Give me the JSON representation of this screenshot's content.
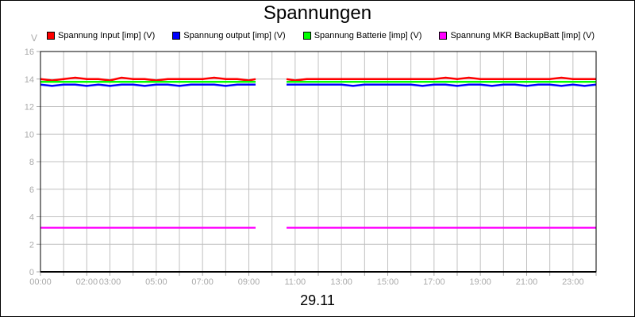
{
  "chart_data": {
    "type": "line",
    "title": "Spannungen",
    "xlabel": "29.11",
    "ylabel": "V",
    "ylim": [
      0,
      16
    ],
    "yticks": [
      0,
      2,
      4,
      6,
      8,
      10,
      12,
      14,
      16
    ],
    "xlim": [
      0,
      24
    ],
    "xticks": [
      {
        "value": 0,
        "label": "00:00"
      },
      {
        "value": 2,
        "label": "02:00"
      },
      {
        "value": 3,
        "label": "03:00"
      },
      {
        "value": 5,
        "label": "05:00"
      },
      {
        "value": 7,
        "label": "07:00"
      },
      {
        "value": 9,
        "label": "09:00"
      },
      {
        "value": 11,
        "label": "11:00"
      },
      {
        "value": 13,
        "label": "13:00"
      },
      {
        "value": 15,
        "label": "15:00"
      },
      {
        "value": 17,
        "label": "17:00"
      },
      {
        "value": 19,
        "label": "19:00"
      },
      {
        "value": 21,
        "label": "21:00"
      },
      {
        "value": 23,
        "label": "23:00"
      }
    ],
    "grid": true,
    "legend": "top",
    "x": [
      0,
      0.5,
      1,
      1.5,
      2,
      2.5,
      3,
      3.5,
      4,
      4.5,
      5,
      5.5,
      6,
      6.5,
      7,
      7.5,
      8,
      8.5,
      9,
      9.29,
      null,
      10.63,
      11,
      11.5,
      12,
      12.5,
      13,
      13.5,
      14,
      14.5,
      15,
      15.5,
      16,
      16.5,
      17,
      17.5,
      18,
      18.5,
      19,
      19.5,
      20,
      20.5,
      21,
      21.5,
      22,
      22.5,
      23,
      23.5,
      24
    ],
    "series": [
      {
        "name": "Spannung Input [imp] (V)",
        "color": "#ff0000",
        "values": [
          14.0,
          13.9,
          14.0,
          14.1,
          14.0,
          14.0,
          13.9,
          14.1,
          14.0,
          14.0,
          13.9,
          14.0,
          14.0,
          14.0,
          14.0,
          14.1,
          14.0,
          14.0,
          13.9,
          14.0,
          null,
          14.0,
          13.9,
          14.0,
          14.0,
          14.0,
          14.0,
          14.0,
          14.0,
          14.0,
          14.0,
          14.0,
          14.0,
          14.0,
          14.0,
          14.1,
          14.0,
          14.1,
          14.0,
          14.0,
          14.0,
          14.0,
          14.0,
          14.0,
          14.0,
          14.1,
          14.0,
          14.0,
          14.0
        ]
      },
      {
        "name": "Spannung output [imp] (V)",
        "color": "#0000ff",
        "values": [
          13.6,
          13.5,
          13.6,
          13.6,
          13.5,
          13.6,
          13.5,
          13.6,
          13.6,
          13.5,
          13.6,
          13.6,
          13.5,
          13.6,
          13.6,
          13.6,
          13.5,
          13.6,
          13.6,
          13.6,
          null,
          13.6,
          13.6,
          13.6,
          13.6,
          13.6,
          13.6,
          13.5,
          13.6,
          13.6,
          13.6,
          13.6,
          13.6,
          13.5,
          13.6,
          13.6,
          13.5,
          13.6,
          13.6,
          13.5,
          13.6,
          13.6,
          13.5,
          13.6,
          13.6,
          13.5,
          13.6,
          13.5,
          13.6
        ]
      },
      {
        "name": "Spannung Batterie [imp] (V)",
        "color": "#00ff00",
        "values": [
          13.8,
          13.8,
          13.8,
          13.8,
          13.8,
          13.8,
          13.8,
          13.8,
          13.8,
          13.8,
          13.8,
          13.8,
          13.8,
          13.8,
          13.8,
          13.8,
          13.8,
          13.8,
          13.8,
          13.8,
          null,
          13.8,
          13.8,
          13.8,
          13.8,
          13.8,
          13.8,
          13.8,
          13.8,
          13.8,
          13.8,
          13.8,
          13.8,
          13.8,
          13.8,
          13.8,
          13.8,
          13.8,
          13.8,
          13.8,
          13.8,
          13.8,
          13.8,
          13.8,
          13.8,
          13.8,
          13.8,
          13.8,
          13.8
        ]
      },
      {
        "name": "Spannung MKR BackupBatt [imp] (V)",
        "color": "#ff00ff",
        "values": [
          3.2,
          3.2,
          3.2,
          3.2,
          3.2,
          3.2,
          3.2,
          3.2,
          3.2,
          3.2,
          3.2,
          3.2,
          3.2,
          3.2,
          3.2,
          3.2,
          3.2,
          3.2,
          3.2,
          3.2,
          null,
          3.2,
          3.2,
          3.2,
          3.2,
          3.2,
          3.2,
          3.2,
          3.2,
          3.2,
          3.2,
          3.2,
          3.2,
          3.2,
          3.2,
          3.2,
          3.2,
          3.2,
          3.2,
          3.2,
          3.2,
          3.2,
          3.2,
          3.2,
          3.2,
          3.2,
          3.2,
          3.2,
          3.2
        ]
      }
    ]
  }
}
